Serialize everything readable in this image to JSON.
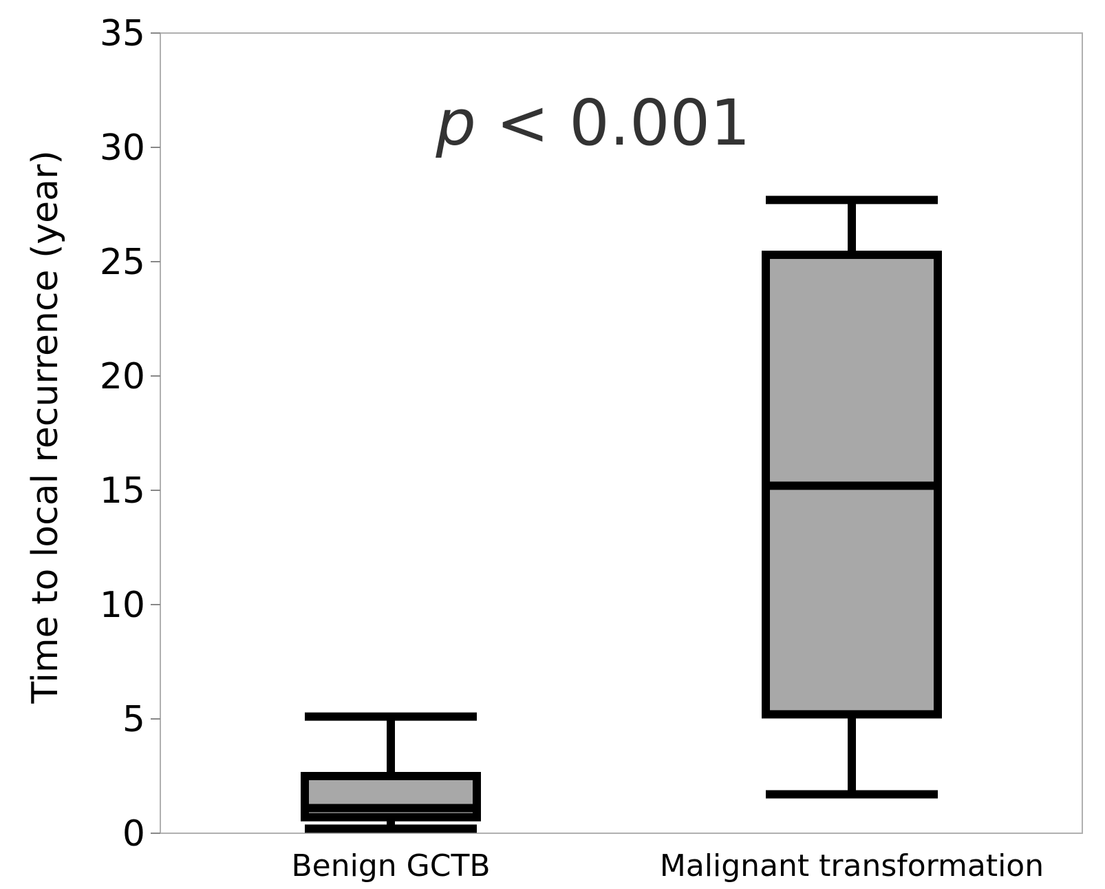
{
  "chart_data": {
    "type": "boxplot",
    "title": "",
    "xlabel": "",
    "ylabel": "Time to local recurrence (year)",
    "ylim": [
      0,
      35
    ],
    "yticks": [
      0,
      5,
      10,
      15,
      20,
      25,
      30,
      35
    ],
    "ytick_labels": [
      "0",
      "5",
      "10",
      "15",
      "20",
      "25",
      "30",
      "35"
    ],
    "grid": false,
    "categories": [
      "Benign GCTB",
      "Malignant transformation"
    ],
    "boxes": [
      {
        "name": "Benign GCTB",
        "whisker_low": 0.2,
        "q1": 0.7,
        "median": 1.1,
        "q3": 2.5,
        "whisker_high": 5.1
      },
      {
        "name": "Malignant transformation",
        "whisker_low": 1.7,
        "q1": 5.2,
        "median": 15.2,
        "q3": 25.3,
        "whisker_high": 27.7
      }
    ],
    "annotation": {
      "italic_part": "p",
      "rest": " < 0.001"
    },
    "colors": {
      "box_fill": "#a8a8a8",
      "box_stroke": "#000000",
      "frame": "#b0b0b0"
    }
  }
}
